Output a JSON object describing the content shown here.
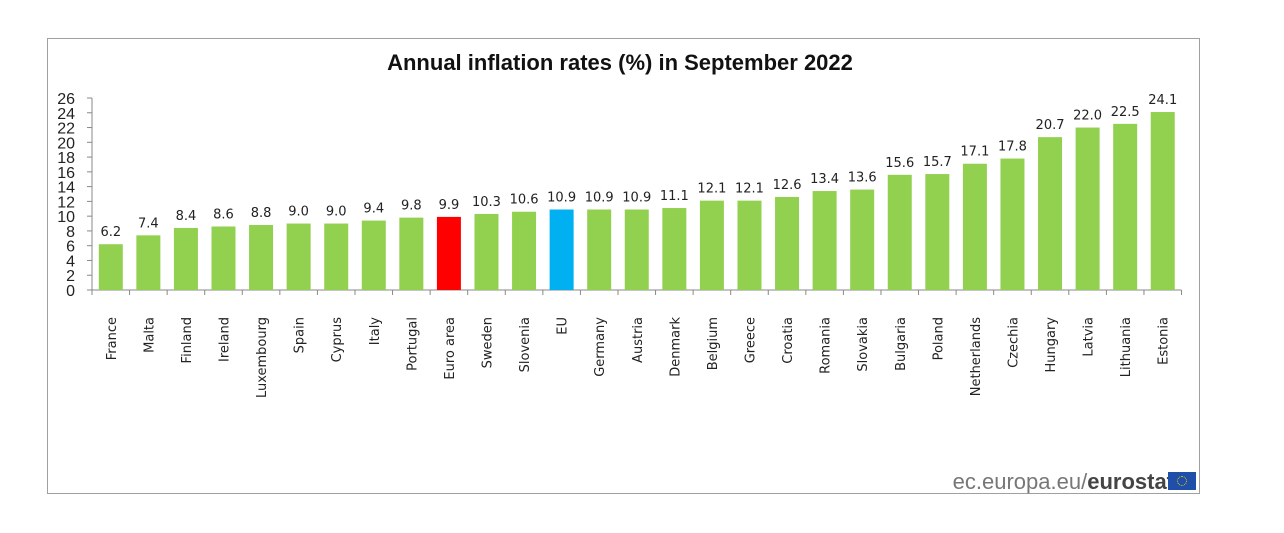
{
  "chart_data": {
    "type": "bar",
    "title": "Annual inflation rates (%) in  September 2022",
    "xlabel": "",
    "ylabel": "",
    "ylim": [
      0,
      26
    ],
    "yticks": [
      0,
      2,
      4,
      6,
      8,
      10,
      12,
      14,
      16,
      18,
      20,
      22,
      24,
      26
    ],
    "grid": false,
    "categories": [
      "France",
      "Malta",
      "Finland",
      "Ireland",
      "Luxembourg",
      "Spain",
      "Cyprus",
      "Italy",
      "Portugal",
      "Euro area",
      "Sweden",
      "Slovenia",
      "EU",
      "Germany",
      "Austria",
      "Denmark",
      "Belgium",
      "Greece",
      "Croatia",
      "Romania",
      "Slovakia",
      "Bulgaria",
      "Poland",
      "Netherlands",
      "Czechia",
      "Hungary",
      "Latvia",
      "Lithuania",
      "Estonia"
    ],
    "values": [
      6.2,
      7.4,
      8.4,
      8.6,
      8.8,
      9.0,
      9.0,
      9.4,
      9.8,
      9.9,
      10.3,
      10.6,
      10.9,
      10.9,
      10.9,
      11.1,
      12.1,
      12.1,
      12.6,
      13.4,
      13.6,
      15.6,
      15.7,
      17.1,
      17.8,
      20.7,
      22.0,
      22.5,
      24.1
    ],
    "value_labels": [
      "6.2",
      "7.4",
      "8.4",
      "8.6",
      "8.8",
      "9.0",
      "9.0",
      "9.4",
      "9.8",
      "9.9",
      "10.3",
      "10.6",
      "10.9",
      "10.9",
      "10.9",
      "11.1",
      "12.1",
      "12.1",
      "12.6",
      "13.4",
      "13.6",
      "15.6",
      "15.7",
      "17.1",
      "17.8",
      "20.7",
      "22.0",
      "22.5",
      "24.1"
    ],
    "colors": {
      "default": "#92d050",
      "Euro area": "#ff0000",
      "EU": "#00b0f0"
    }
  },
  "source": {
    "prefix": "ec.europa.eu/",
    "brand": "eurostat"
  }
}
